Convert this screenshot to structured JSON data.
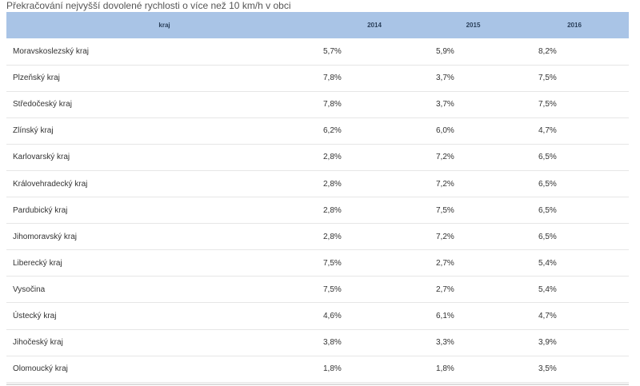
{
  "title": "Překračování nejvyšší dovolené rychlosti o více než 10 km/h v obci",
  "chart_data": {
    "type": "table",
    "title": "Překračování nejvyšší dovolené rychlosti o více než 10 km/h v obci",
    "columns": [
      "kraj",
      "2014",
      "2015",
      "2016"
    ],
    "rows": [
      [
        "Moravskoslezský kraj",
        "5,7%",
        "5,9%",
        "8,2%"
      ],
      [
        "Plzeňský kraj",
        "7,8%",
        "3,7%",
        "7,5%"
      ],
      [
        "Středočeský kraj",
        "7,8%",
        "3,7%",
        "7,5%"
      ],
      [
        "Zlínský kraj",
        "6,2%",
        "6,0%",
        "4,7%"
      ],
      [
        "Karlovarský kraj",
        "2,8%",
        "7,2%",
        "6,5%"
      ],
      [
        "Královehradecký kraj",
        "2,8%",
        "7,2%",
        "6,5%"
      ],
      [
        "Pardubický kraj",
        "2,8%",
        "7,5%",
        "6,5%"
      ],
      [
        "Jihomoravský kraj",
        "2,8%",
        "7,2%",
        "6,5%"
      ],
      [
        "Liberecký kraj",
        "7,5%",
        "2,7%",
        "5,4%"
      ],
      [
        "Vysočina",
        "7,5%",
        "2,7%",
        "5,4%"
      ],
      [
        "Ústecký kraj",
        "4,6%",
        "6,1%",
        "4,7%"
      ],
      [
        "Jihočeský kraj",
        "3,8%",
        "3,3%",
        "3,9%"
      ],
      [
        "Olomoucký kraj",
        "1,8%",
        "1,8%",
        "3,5%"
      ]
    ]
  },
  "colors": {
    "header_bg": "#a9c4e6",
    "row_border": "#e6e6e6"
  }
}
